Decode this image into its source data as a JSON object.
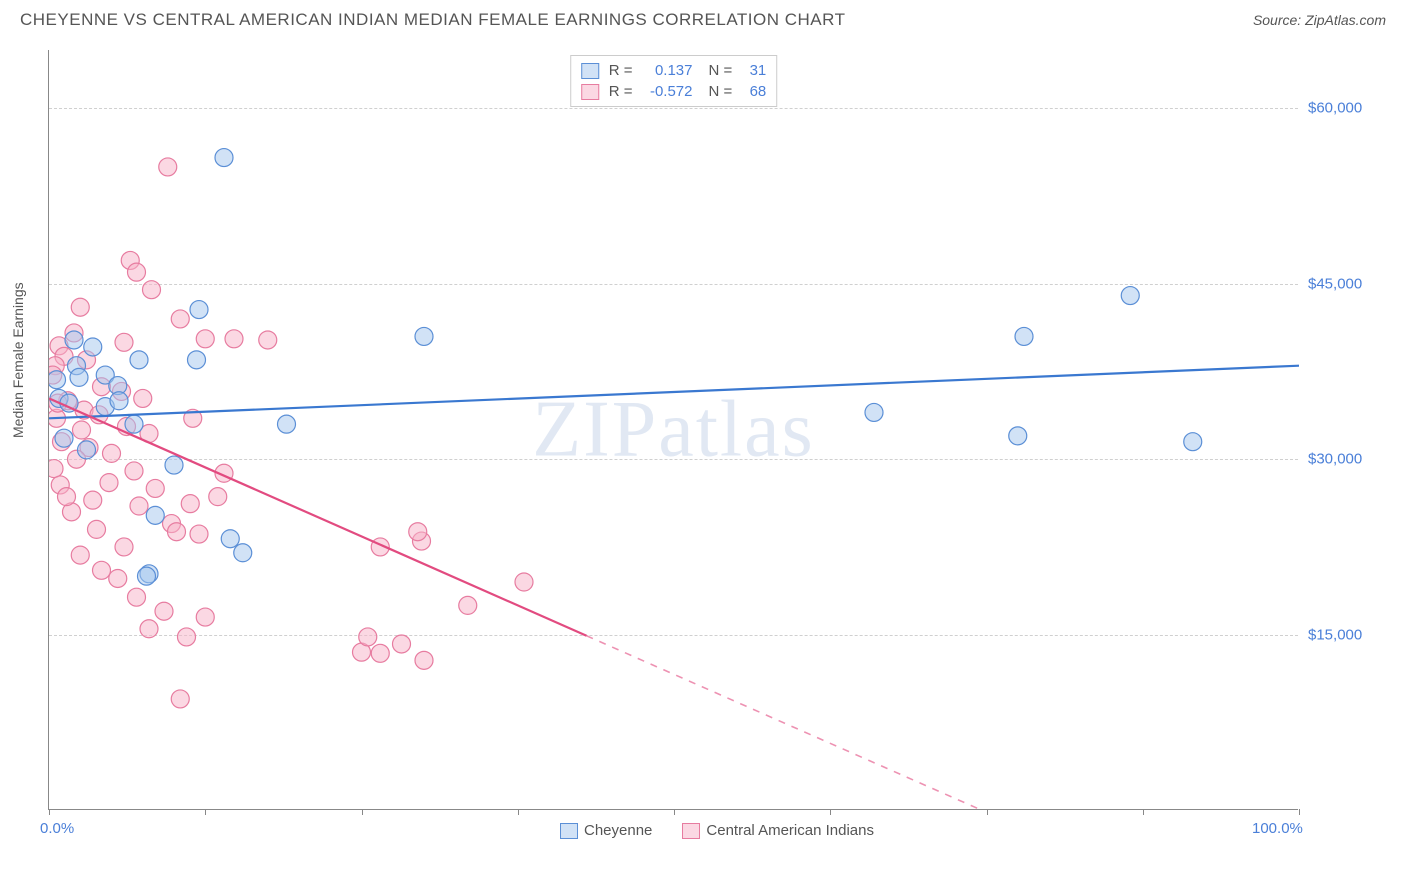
{
  "title": "CHEYENNE VS CENTRAL AMERICAN INDIAN MEDIAN FEMALE EARNINGS CORRELATION CHART",
  "source": "Source: ZipAtlas.com",
  "watermark": "ZIPatlas",
  "chart": {
    "type": "scatter",
    "y_axis_title": "Median Female Earnings",
    "x_min": 0.0,
    "x_max": 100.0,
    "x_min_label": "0.0%",
    "x_max_label": "100.0%",
    "y_min": 0,
    "y_max": 65000,
    "y_ticks": [
      15000,
      30000,
      45000,
      60000
    ],
    "y_tick_labels": [
      "$15,000",
      "$30,000",
      "$45,000",
      "$60,000"
    ],
    "x_tick_positions": [
      0,
      12.5,
      25,
      37.5,
      50,
      62.5,
      75,
      87.5,
      100
    ],
    "marker_radius": 9,
    "marker_opacity": 0.5,
    "background_color": "#ffffff",
    "grid_color": "#d0d0d0",
    "axis_color": "#888888",
    "series": [
      {
        "name": "Cheyenne",
        "stroke_color": "#5b8fd6",
        "fill_color": "rgba(164, 197, 237, 0.5)",
        "line_color": "#3a78d0",
        "r_label": "R =",
        "r_value": "0.137",
        "n_label": "N =",
        "n_value": "31",
        "trend": {
          "x1": 0,
          "y1": 33500,
          "x2": 100,
          "y2": 38000,
          "extrapolate_from_x": null
        },
        "points": [
          [
            14,
            55800
          ],
          [
            12,
            42800
          ],
          [
            2.2,
            38000
          ],
          [
            4.5,
            37200
          ],
          [
            5.5,
            36300
          ],
          [
            7.2,
            38500
          ],
          [
            11.8,
            38500
          ],
          [
            4.5,
            34500
          ],
          [
            6.8,
            33000
          ],
          [
            19,
            33000
          ],
          [
            0.8,
            35200
          ],
          [
            1.6,
            34800
          ],
          [
            2.0,
            40200
          ],
          [
            30,
            40500
          ],
          [
            86.5,
            44000
          ],
          [
            78,
            40500
          ],
          [
            66,
            34000
          ],
          [
            91.5,
            31500
          ],
          [
            77.5,
            32000
          ],
          [
            10,
            29500
          ],
          [
            8.5,
            25200
          ],
          [
            15.5,
            22000
          ],
          [
            8,
            20200
          ],
          [
            7.8,
            20000
          ],
          [
            14.5,
            23200
          ],
          [
            1.2,
            31800
          ],
          [
            3.0,
            30800
          ],
          [
            5.6,
            35000
          ],
          [
            2.4,
            37000
          ],
          [
            0.6,
            36800
          ],
          [
            3.5,
            39600
          ]
        ]
      },
      {
        "name": "Central American Indians",
        "stroke_color": "#e77ca0",
        "fill_color": "rgba(247, 178, 199, 0.5)",
        "line_color": "#e24b80",
        "r_label": "R =",
        "r_value": "-0.572",
        "n_label": "N =",
        "n_value": "68",
        "trend": {
          "x1": 0,
          "y1": 35200,
          "x2": 100,
          "y2": -12000,
          "extrapolate_from_x": 43
        },
        "points": [
          [
            9.5,
            55000
          ],
          [
            6.5,
            47000
          ],
          [
            7.0,
            46000
          ],
          [
            8.2,
            44500
          ],
          [
            2.5,
            43000
          ],
          [
            10.5,
            42000
          ],
          [
            12.5,
            40300
          ],
          [
            14.8,
            40300
          ],
          [
            17.5,
            40200
          ],
          [
            6.0,
            40000
          ],
          [
            2.0,
            40800
          ],
          [
            0.8,
            39700
          ],
          [
            1.2,
            38800
          ],
          [
            3.0,
            38500
          ],
          [
            0.5,
            38000
          ],
          [
            0.3,
            37200
          ],
          [
            4.2,
            36200
          ],
          [
            5.8,
            35800
          ],
          [
            7.5,
            35200
          ],
          [
            1.5,
            35000
          ],
          [
            2.8,
            34200
          ],
          [
            4.0,
            33800
          ],
          [
            0.6,
            33500
          ],
          [
            6.2,
            32800
          ],
          [
            8.0,
            32200
          ],
          [
            1.0,
            31500
          ],
          [
            3.2,
            31000
          ],
          [
            5.0,
            30500
          ],
          [
            2.2,
            30000
          ],
          [
            11.5,
            33500
          ],
          [
            14.0,
            28800
          ],
          [
            0.4,
            29200
          ],
          [
            6.8,
            29000
          ],
          [
            4.8,
            28000
          ],
          [
            8.5,
            27500
          ],
          [
            11.3,
            26200
          ],
          [
            13.5,
            26800
          ],
          [
            3.5,
            26500
          ],
          [
            7.2,
            26000
          ],
          [
            1.8,
            25500
          ],
          [
            9.8,
            24500
          ],
          [
            10.2,
            23800
          ],
          [
            12.0,
            23600
          ],
          [
            6.0,
            22500
          ],
          [
            26.5,
            22500
          ],
          [
            29.8,
            23000
          ],
          [
            29.5,
            23800
          ],
          [
            38,
            19500
          ],
          [
            33.5,
            17500
          ],
          [
            25.0,
            13500
          ],
          [
            26.5,
            13400
          ],
          [
            28.2,
            14200
          ],
          [
            30.0,
            12800
          ],
          [
            10.5,
            9500
          ],
          [
            7.0,
            18200
          ],
          [
            9.2,
            17000
          ],
          [
            8.0,
            15500
          ],
          [
            11.0,
            14800
          ],
          [
            12.5,
            16500
          ],
          [
            25.5,
            14800
          ],
          [
            4.2,
            20500
          ],
          [
            2.5,
            21800
          ],
          [
            5.5,
            19800
          ],
          [
            3.8,
            24000
          ],
          [
            0.9,
            27800
          ],
          [
            1.4,
            26800
          ],
          [
            2.6,
            32500
          ],
          [
            0.7,
            34800
          ]
        ]
      }
    ]
  }
}
